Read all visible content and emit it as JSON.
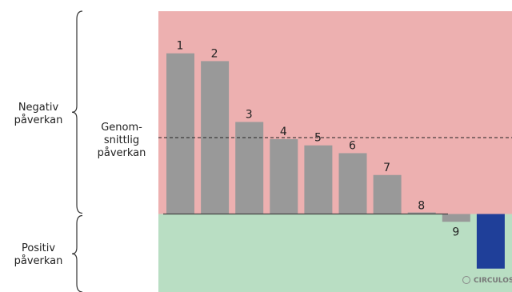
{
  "chart_data": {
    "type": "bar",
    "categories": [
      "1",
      "2",
      "3",
      "4",
      "5",
      "6",
      "7",
      "8",
      "9",
      ""
    ],
    "values": [
      10.3,
      9.8,
      5.9,
      4.8,
      4.4,
      3.9,
      2.5,
      0.1,
      -0.5,
      -3.5
    ],
    "ylim": [
      -5.0,
      13.0
    ],
    "bar_color": "#999999",
    "highlight_bar_color": "#1f3f99",
    "negative_zone_color": "#edb0b0",
    "positive_zone_color": "#b9dec3",
    "average": {
      "value": 4.9,
      "label": [
        "Genom-",
        "snittlig",
        "påverkan"
      ]
    },
    "zones": {
      "negative": {
        "label": [
          "Negativ",
          "påverkan"
        ]
      },
      "positive": {
        "label": [
          "Positiv",
          "påverkan"
        ]
      }
    },
    "grid": false,
    "legend": "none"
  },
  "logo": {
    "text": "CIRCULOSE",
    "icon": "copyright-icon"
  }
}
